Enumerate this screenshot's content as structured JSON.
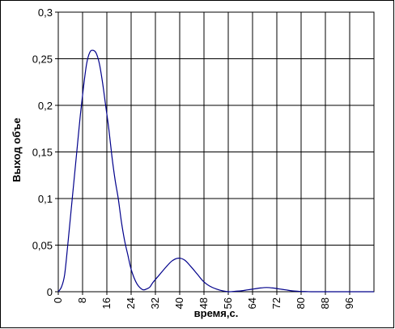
{
  "chart_data": {
    "type": "line",
    "title": "",
    "xlabel": "время,с.",
    "ylabel": "Выход объе",
    "xlim": [
      0,
      100
    ],
    "ylim": [
      0,
      0.3
    ],
    "grid": true,
    "legend": "none",
    "line_color": "#00008b",
    "x_ticks": [
      "0",
      "8",
      "16",
      "24",
      "32",
      "40",
      "48",
      "56",
      "64",
      "72",
      "80",
      "88",
      "96"
    ],
    "y_ticks": [
      "0",
      "0,05",
      "0,1",
      "0,15",
      "0,2",
      "0,25",
      "0,3"
    ],
    "series": [
      {
        "x": [
          0,
          1,
          2,
          3,
          4,
          5,
          6,
          7,
          8,
          9,
          10,
          11,
          12,
          13,
          14,
          15,
          16,
          17,
          18,
          19,
          20,
          21,
          22,
          23,
          24,
          25,
          26,
          27,
          28,
          29,
          30,
          32,
          34,
          36,
          38,
          40,
          42,
          44,
          46,
          48,
          50,
          52,
          54,
          56,
          58,
          60,
          62,
          64,
          66,
          68,
          70,
          72,
          74,
          76,
          78,
          80,
          82,
          84,
          86,
          88,
          90,
          92,
          94,
          96,
          98,
          100
        ],
        "y": [
          0,
          0.005,
          0.018,
          0.05,
          0.085,
          0.12,
          0.155,
          0.19,
          0.22,
          0.245,
          0.257,
          0.259,
          0.256,
          0.245,
          0.225,
          0.2,
          0.175,
          0.145,
          0.12,
          0.1,
          0.075,
          0.055,
          0.04,
          0.025,
          0.015,
          0.008,
          0.004,
          0.002,
          0.003,
          0.005,
          0.01,
          0.018,
          0.026,
          0.033,
          0.036,
          0.034,
          0.027,
          0.019,
          0.011,
          0.006,
          0.003,
          0.001,
          0,
          0.0005,
          0.001,
          0.002,
          0.003,
          0.004,
          0.0045,
          0.004,
          0.003,
          0.002,
          0.001,
          0.0005,
          0.0002,
          0,
          0,
          0,
          0,
          0,
          0,
          0,
          0,
          0,
          0,
          0
        ]
      }
    ]
  }
}
